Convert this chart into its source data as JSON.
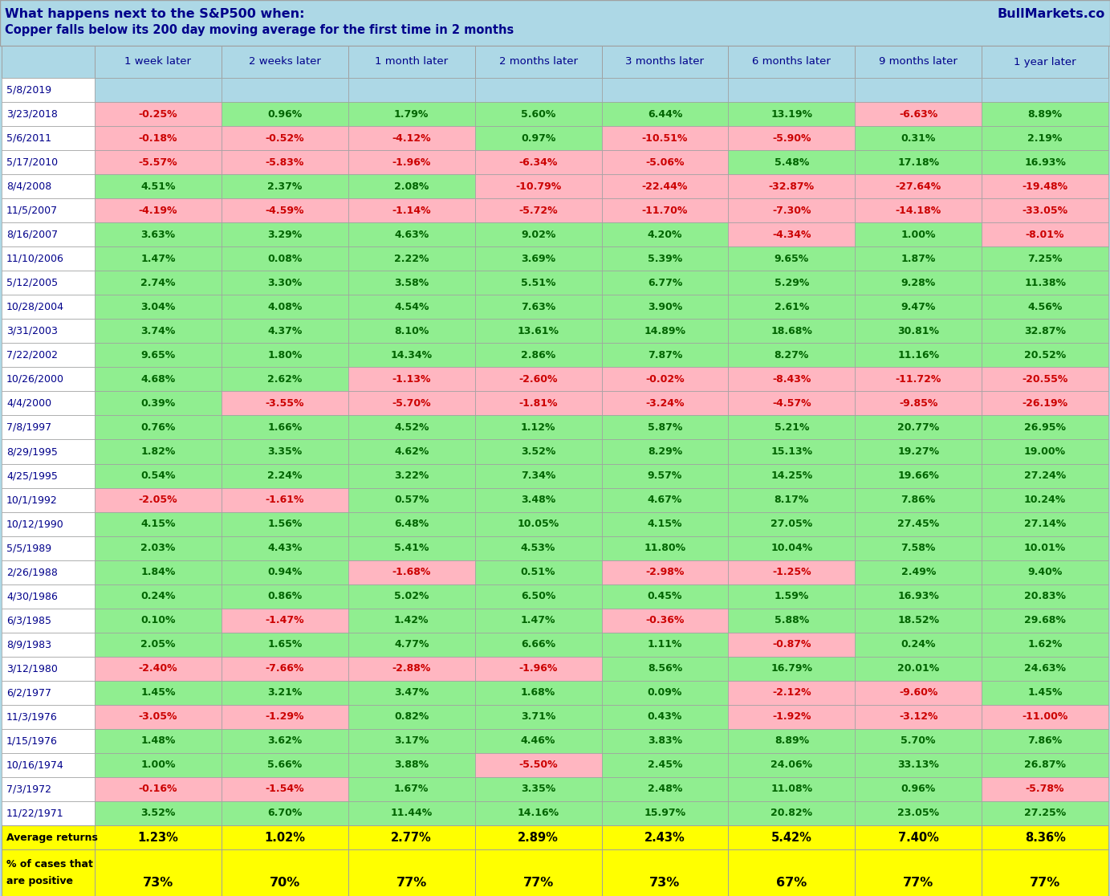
{
  "title_line1": "What happens next to the S&P500 when:",
  "title_line2": "Copper falls below its 200 day moving average for the first time in 2 months",
  "brand": "BullMarkets.co",
  "col_headers": [
    "1 week later",
    "2 weeks later",
    "1 month later",
    "2 months later",
    "3 months later",
    "6 months later",
    "9 months later",
    "1 year later"
  ],
  "rows": [
    {
      "date": "5/8/2019",
      "vals": [
        null,
        null,
        null,
        null,
        null,
        null,
        null,
        null
      ]
    },
    {
      "date": "3/23/2018",
      "vals": [
        -0.25,
        0.96,
        1.79,
        5.6,
        6.44,
        13.19,
        -6.63,
        8.89
      ]
    },
    {
      "date": "5/6/2011",
      "vals": [
        -0.18,
        -0.52,
        -4.12,
        0.97,
        -10.51,
        -5.9,
        0.31,
        2.19
      ]
    },
    {
      "date": "5/17/2010",
      "vals": [
        -5.57,
        -5.83,
        -1.96,
        -6.34,
        -5.06,
        5.48,
        17.18,
        16.93
      ]
    },
    {
      "date": "8/4/2008",
      "vals": [
        4.51,
        2.37,
        2.08,
        -10.79,
        -22.44,
        -32.87,
        -27.64,
        -19.48
      ]
    },
    {
      "date": "11/5/2007",
      "vals": [
        -4.19,
        -4.59,
        -1.14,
        -5.72,
        -11.7,
        -7.3,
        -14.18,
        -33.05
      ]
    },
    {
      "date": "8/16/2007",
      "vals": [
        3.63,
        3.29,
        4.63,
        9.02,
        4.2,
        -4.34,
        1.0,
        -8.01
      ]
    },
    {
      "date": "11/10/2006",
      "vals": [
        1.47,
        0.08,
        2.22,
        3.69,
        5.39,
        9.65,
        1.87,
        7.25
      ]
    },
    {
      "date": "5/12/2005",
      "vals": [
        2.74,
        3.3,
        3.58,
        5.51,
        6.77,
        5.29,
        9.28,
        11.38
      ]
    },
    {
      "date": "10/28/2004",
      "vals": [
        3.04,
        4.08,
        4.54,
        7.63,
        3.9,
        2.61,
        9.47,
        4.56
      ]
    },
    {
      "date": "3/31/2003",
      "vals": [
        3.74,
        4.37,
        8.1,
        13.61,
        14.89,
        18.68,
        30.81,
        32.87
      ]
    },
    {
      "date": "7/22/2002",
      "vals": [
        9.65,
        1.8,
        14.34,
        2.86,
        7.87,
        8.27,
        11.16,
        20.52
      ]
    },
    {
      "date": "10/26/2000",
      "vals": [
        4.68,
        2.62,
        -1.13,
        -2.6,
        -0.02,
        -8.43,
        -11.72,
        -20.55
      ]
    },
    {
      "date": "4/4/2000",
      "vals": [
        0.39,
        -3.55,
        -5.7,
        -1.81,
        -3.24,
        -4.57,
        -9.85,
        -26.19
      ]
    },
    {
      "date": "7/8/1997",
      "vals": [
        0.76,
        1.66,
        4.52,
        1.12,
        5.87,
        5.21,
        20.77,
        26.95
      ]
    },
    {
      "date": "8/29/1995",
      "vals": [
        1.82,
        3.35,
        4.62,
        3.52,
        8.29,
        15.13,
        19.27,
        19.0
      ]
    },
    {
      "date": "4/25/1995",
      "vals": [
        0.54,
        2.24,
        3.22,
        7.34,
        9.57,
        14.25,
        19.66,
        27.24
      ]
    },
    {
      "date": "10/1/1992",
      "vals": [
        -2.05,
        -1.61,
        0.57,
        3.48,
        4.67,
        8.17,
        7.86,
        10.24
      ]
    },
    {
      "date": "10/12/1990",
      "vals": [
        4.15,
        1.56,
        6.48,
        10.05,
        4.15,
        27.05,
        27.45,
        27.14
      ]
    },
    {
      "date": "5/5/1989",
      "vals": [
        2.03,
        4.43,
        5.41,
        4.53,
        11.8,
        10.04,
        7.58,
        10.01
      ]
    },
    {
      "date": "2/26/1988",
      "vals": [
        1.84,
        0.94,
        -1.68,
        0.51,
        -2.98,
        -1.25,
        2.49,
        9.4
      ]
    },
    {
      "date": "4/30/1986",
      "vals": [
        0.24,
        0.86,
        5.02,
        6.5,
        0.45,
        1.59,
        16.93,
        20.83
      ]
    },
    {
      "date": "6/3/1985",
      "vals": [
        0.1,
        -1.47,
        1.42,
        1.47,
        -0.36,
        5.88,
        18.52,
        29.68
      ]
    },
    {
      "date": "8/9/1983",
      "vals": [
        2.05,
        1.65,
        4.77,
        6.66,
        1.11,
        -0.87,
        0.24,
        1.62
      ]
    },
    {
      "date": "3/12/1980",
      "vals": [
        -2.4,
        -7.66,
        -2.88,
        -1.96,
        8.56,
        16.79,
        20.01,
        24.63
      ]
    },
    {
      "date": "6/2/1977",
      "vals": [
        1.45,
        3.21,
        3.47,
        1.68,
        0.09,
        -2.12,
        -9.6,
        1.45
      ]
    },
    {
      "date": "11/3/1976",
      "vals": [
        -3.05,
        -1.29,
        0.82,
        3.71,
        0.43,
        -1.92,
        -3.12,
        -11.0
      ]
    },
    {
      "date": "1/15/1976",
      "vals": [
        1.48,
        3.62,
        3.17,
        4.46,
        3.83,
        8.89,
        5.7,
        7.86
      ]
    },
    {
      "date": "10/16/1974",
      "vals": [
        1.0,
        5.66,
        3.88,
        -5.5,
        2.45,
        24.06,
        33.13,
        26.87
      ]
    },
    {
      "date": "7/3/1972",
      "vals": [
        -0.16,
        -1.54,
        1.67,
        3.35,
        2.48,
        11.08,
        0.96,
        -5.78
      ]
    },
    {
      "date": "11/22/1971",
      "vals": [
        3.52,
        6.7,
        11.44,
        14.16,
        15.97,
        20.82,
        23.05,
        27.25
      ]
    }
  ],
  "avg_returns": [
    1.23,
    1.02,
    2.77,
    2.89,
    2.43,
    5.42,
    7.4,
    8.36
  ],
  "pct_positive": [
    73,
    70,
    77,
    77,
    73,
    67,
    77,
    77
  ],
  "avg_label": "Average returns",
  "pct_label1": "% of cases that",
  "pct_label2": "are positive",
  "bg_color": "#add8e6",
  "pos_color": "#90EE90",
  "neg_color": "#FFB6C1",
  "null_color": "#add8e6",
  "yellow_color": "#FFFF00",
  "text_pos": "#006400",
  "text_neg": "#CC0000",
  "text_dark": "#00008B",
  "border_color": "#a0a0a0",
  "white_color": "#ffffff"
}
